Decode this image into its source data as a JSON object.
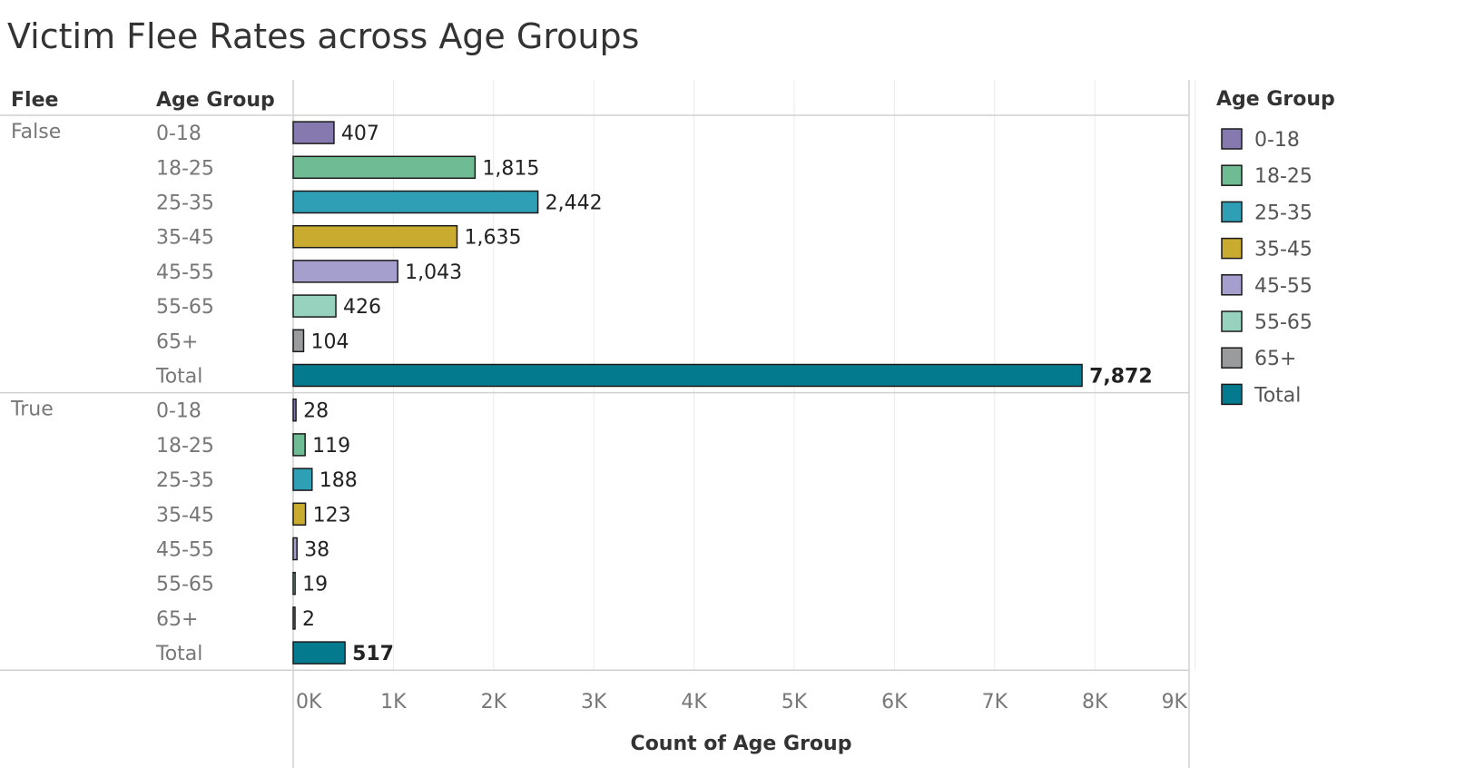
{
  "title": "Victim Flee Rates across Age Groups",
  "chart_data": {
    "type": "bar",
    "orientation": "horizontal",
    "row_headers": [
      "Flee",
      "Age Group"
    ],
    "xlabel": "Count of Age Group",
    "xlim": [
      0,
      9000
    ],
    "x_ticks": [
      "0K",
      "1K",
      "2K",
      "3K",
      "4K",
      "5K",
      "6K",
      "7K",
      "8K",
      "9K"
    ],
    "grid": true,
    "groups": [
      {
        "name": "False",
        "bars": [
          {
            "category": "0-18",
            "value": 407,
            "label": "407"
          },
          {
            "category": "18-25",
            "value": 1815,
            "label": "1,815"
          },
          {
            "category": "25-35",
            "value": 2442,
            "label": "2,442"
          },
          {
            "category": "35-45",
            "value": 1635,
            "label": "1,635"
          },
          {
            "category": "45-55",
            "value": 1043,
            "label": "1,043"
          },
          {
            "category": "55-65",
            "value": 426,
            "label": "426"
          },
          {
            "category": "65+",
            "value": 104,
            "label": "104"
          },
          {
            "category": "Total",
            "value": 7872,
            "label": "7,872"
          }
        ]
      },
      {
        "name": "True",
        "bars": [
          {
            "category": "0-18",
            "value": 28,
            "label": "28"
          },
          {
            "category": "18-25",
            "value": 119,
            "label": "119"
          },
          {
            "category": "25-35",
            "value": 188,
            "label": "188"
          },
          {
            "category": "35-45",
            "value": 123,
            "label": "123"
          },
          {
            "category": "45-55",
            "value": 38,
            "label": "38"
          },
          {
            "category": "55-65",
            "value": 19,
            "label": "19"
          },
          {
            "category": "65+",
            "value": 2,
            "label": "2"
          },
          {
            "category": "Total",
            "value": 517,
            "label": "517"
          }
        ]
      }
    ],
    "legend": {
      "title": "Age Group",
      "position": "right",
      "items": [
        {
          "label": "0-18",
          "color": "#8579b0"
        },
        {
          "label": "18-25",
          "color": "#6fbb93"
        },
        {
          "label": "25-35",
          "color": "#2f9fb5"
        },
        {
          "label": "35-45",
          "color": "#c9ab30"
        },
        {
          "label": "45-55",
          "color": "#a59fce"
        },
        {
          "label": "55-65",
          "color": "#97d2bf"
        },
        {
          "label": "65+",
          "color": "#9a9b9d"
        },
        {
          "label": "Total",
          "color": "#047a8e"
        }
      ]
    }
  }
}
